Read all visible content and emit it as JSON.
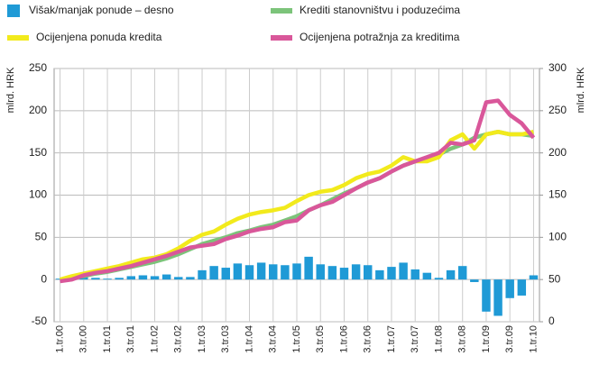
{
  "chart_data": {
    "type": "combo",
    "y_label": "mlrd. HRK",
    "y2_label": "mlrd. HRK",
    "categories": [
      "1.tr.00",
      null,
      "3.tr.00",
      null,
      "1.tr.01",
      null,
      "3.tr.01",
      null,
      "1.tr.02",
      null,
      "3.tr.02",
      null,
      "1.tr.03",
      null,
      "3.tr.03",
      null,
      "1.tr.04",
      null,
      "3.tr.04",
      null,
      "1.tr.05",
      null,
      "3.tr.05",
      null,
      "1.tr.06",
      null,
      "3.tr.06",
      null,
      "1.tr.07",
      null,
      "3.tr.07",
      null,
      "1.tr.08",
      null,
      "3.tr.08",
      null,
      "1.tr.09",
      null,
      "3.tr.09",
      null,
      "1.tr.10"
    ],
    "ylim": [
      -50,
      250
    ],
    "yticks": [
      -50,
      0,
      50,
      100,
      150,
      200,
      250
    ],
    "y2lim": [
      0,
      300
    ],
    "y2ticks": [
      0,
      50,
      100,
      150,
      200,
      250,
      300
    ],
    "grid": true,
    "series": [
      {
        "name": "Višak/manjak ponude – desno",
        "type": "bar",
        "color": "#1f9ad6",
        "values": [
          1,
          2,
          3,
          2,
          1,
          2,
          4,
          5,
          4,
          6,
          3,
          3,
          11,
          16,
          14,
          19,
          17,
          20,
          18,
          17,
          19,
          27,
          18,
          16,
          14,
          18,
          17,
          11,
          15,
          20,
          12,
          8,
          2,
          11,
          16,
          -3,
          -38,
          -43,
          -22,
          -19,
          5
        ]
      },
      {
        "name": "Krediti stanovništvu i poduzećima",
        "type": "line",
        "axis": "y2",
        "color": "#7cc47a",
        "values": [
          50,
          52,
          54,
          57,
          59,
          62,
          65,
          68,
          71,
          75,
          80,
          86,
          92,
          96,
          100,
          105,
          108,
          112,
          115,
          120,
          125,
          132,
          138,
          145,
          152,
          158,
          165,
          170,
          178,
          185,
          190,
          193,
          198,
          205,
          210,
          218,
          222,
          225,
          222,
          222,
          220
        ]
      },
      {
        "name": "Ocijenjena ponuda kredita",
        "type": "line",
        "axis": "y2",
        "color": "#f2ea1c",
        "values": [
          50,
          54,
          57,
          60,
          63,
          66,
          70,
          74,
          76,
          80,
          87,
          96,
          103,
          107,
          115,
          122,
          127,
          130,
          132,
          135,
          143,
          150,
          154,
          156,
          162,
          170,
          175,
          178,
          185,
          195,
          190,
          190,
          195,
          215,
          222,
          205,
          222,
          225,
          222,
          222,
          225
        ]
      },
      {
        "name": "Ocijenjena potražnja za kreditima",
        "type": "line",
        "axis": "y2",
        "color": "#d9579a",
        "values": [
          48,
          50,
          55,
          58,
          60,
          63,
          66,
          70,
          74,
          78,
          83,
          88,
          90,
          92,
          98,
          102,
          107,
          110,
          112,
          118,
          120,
          132,
          138,
          142,
          150,
          158,
          165,
          170,
          178,
          185,
          190,
          195,
          200,
          212,
          210,
          215,
          260,
          262,
          245,
          235,
          218
        ]
      }
    ]
  }
}
